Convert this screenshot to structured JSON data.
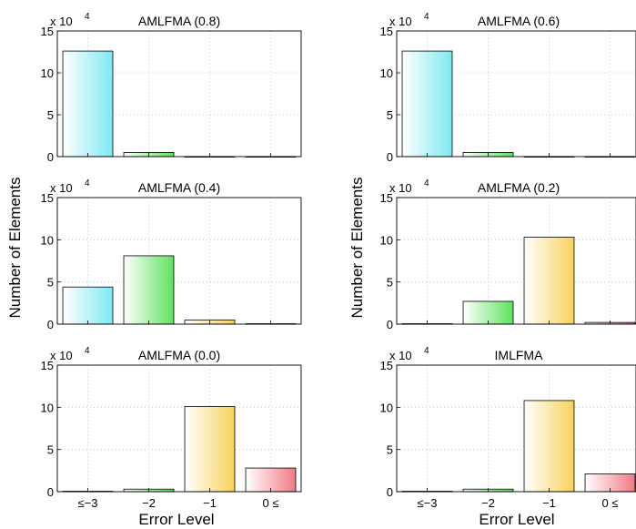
{
  "figure": {
    "shared_ylabel_left": "Number of Elements",
    "shared_ylabel_right": "Number of Elements",
    "xlabel_left": "Error Level",
    "xlabel_right": "Error Level",
    "exponent_base": "x 10",
    "exponent_power": "4"
  },
  "bar_colors": [
    "#7fe8f2",
    "#5fe25f",
    "#f7d25a",
    "#f07a85"
  ],
  "chart_data": [
    {
      "type": "bar",
      "title": "AMLFMA (0.8)",
      "categories": [
        "≤−3",
        "−2",
        "−1",
        "0 ≤"
      ],
      "values": [
        12.6,
        0.5,
        0.0,
        0.0
      ],
      "ylim": [
        0,
        15
      ],
      "yticks": [
        0,
        5,
        10,
        15
      ],
      "y_multiplier": "x 10^4",
      "grid": true,
      "show_xticklabels": false
    },
    {
      "type": "bar",
      "title": "AMLFMA (0.6)",
      "categories": [
        "≤−3",
        "−2",
        "−1",
        "0 ≤"
      ],
      "values": [
        12.6,
        0.5,
        0.0,
        0.0
      ],
      "ylim": [
        0,
        15
      ],
      "yticks": [
        0,
        5,
        10,
        15
      ],
      "y_multiplier": "x 10^4",
      "grid": true,
      "show_xticklabels": false
    },
    {
      "type": "bar",
      "title": "AMLFMA (0.4)",
      "categories": [
        "≤−3",
        "−2",
        "−1",
        "0 ≤"
      ],
      "values": [
        4.4,
        8.1,
        0.5,
        0.05
      ],
      "ylim": [
        0,
        15
      ],
      "yticks": [
        0,
        5,
        10,
        15
      ],
      "y_multiplier": "x 10^4",
      "grid": true,
      "show_xticklabels": false
    },
    {
      "type": "bar",
      "title": "AMLFMA (0.2)",
      "categories": [
        "≤−3",
        "−2",
        "−1",
        "0 ≤"
      ],
      "values": [
        0.05,
        2.7,
        10.3,
        0.2
      ],
      "ylim": [
        0,
        15
      ],
      "yticks": [
        0,
        5,
        10,
        15
      ],
      "y_multiplier": "x 10^4",
      "grid": true,
      "show_xticklabels": false
    },
    {
      "type": "bar",
      "title": "AMLFMA (0.0)",
      "categories": [
        "≤−3",
        "−2",
        "−1",
        "0 ≤"
      ],
      "values": [
        0.05,
        0.3,
        10.1,
        2.8
      ],
      "ylim": [
        0,
        15
      ],
      "yticks": [
        0,
        5,
        10,
        15
      ],
      "y_multiplier": "x 10^4",
      "grid": true,
      "show_xticklabels": true
    },
    {
      "type": "bar",
      "title": "IMLFMA",
      "categories": [
        "≤−3",
        "−2",
        "−1",
        "0 ≤"
      ],
      "values": [
        0.05,
        0.3,
        10.8,
        2.1
      ],
      "ylim": [
        0,
        15
      ],
      "yticks": [
        0,
        5,
        10,
        15
      ],
      "y_multiplier": "x 10^4",
      "grid": true,
      "show_xticklabels": true
    }
  ]
}
